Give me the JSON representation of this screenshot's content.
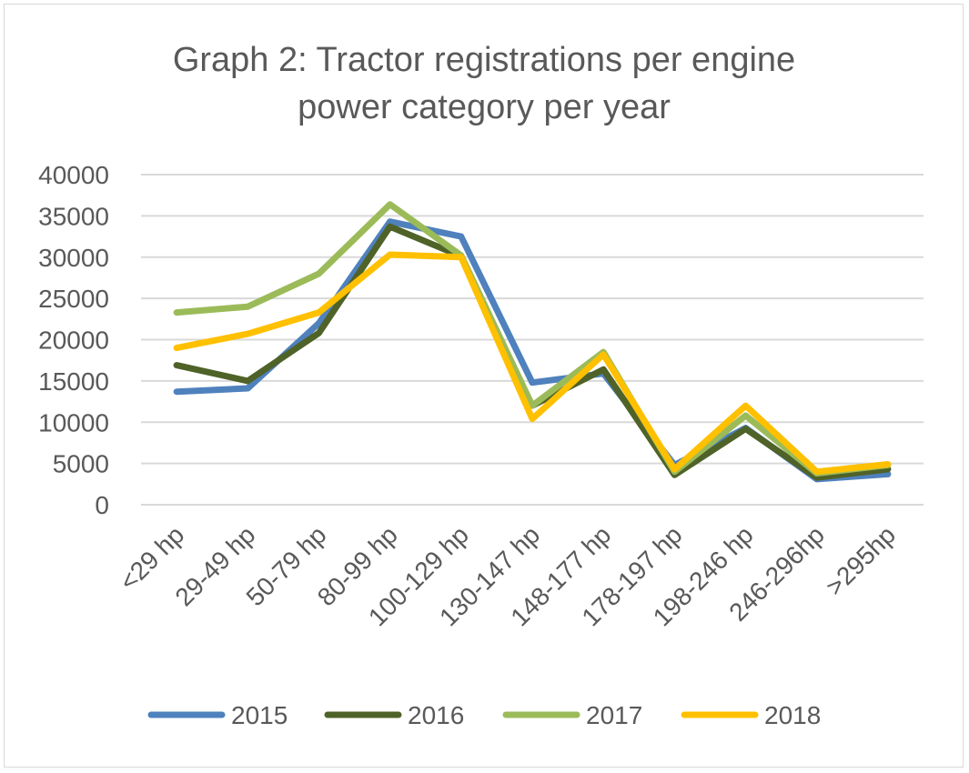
{
  "chart_data": {
    "type": "line",
    "title_lines": [
      "Graph 2: Tractor registrations per engine",
      "power category per year"
    ],
    "categories": [
      "<29 hp",
      "29-49 hp",
      "50-79 hp",
      "80-99 hp",
      "100-129 hp",
      "130-147 hp",
      "148-177 hp",
      "178-197 hp",
      "198-246 hp",
      "246-296hp",
      ">295hp"
    ],
    "y_ticks": [
      "0",
      "5000",
      "10000",
      "15000",
      "20000",
      "25000",
      "30000",
      "35000",
      "40000"
    ],
    "ylim": [
      0,
      40000
    ],
    "grid": "horizontal",
    "legend_position": "bottom",
    "series": [
      {
        "name": "2015",
        "color": "#4f81bd",
        "values": [
          13700,
          14100,
          22000,
          34300,
          32500,
          14800,
          15900,
          4800,
          9300,
          3100,
          3700
        ]
      },
      {
        "name": "2016",
        "color": "#4f6228",
        "values": [
          16900,
          15000,
          20800,
          33700,
          30100,
          12000,
          16400,
          3600,
          9200,
          3300,
          4300
        ]
      },
      {
        "name": "2017",
        "color": "#9bbb59",
        "values": [
          23300,
          24000,
          28000,
          36400,
          30200,
          12000,
          18500,
          4000,
          10800,
          3800,
          4800
        ]
      },
      {
        "name": "2018",
        "color": "#ffc000",
        "values": [
          19000,
          20700,
          23300,
          30300,
          30000,
          10400,
          18200,
          4300,
          12000,
          4000,
          4900
        ]
      }
    ]
  }
}
